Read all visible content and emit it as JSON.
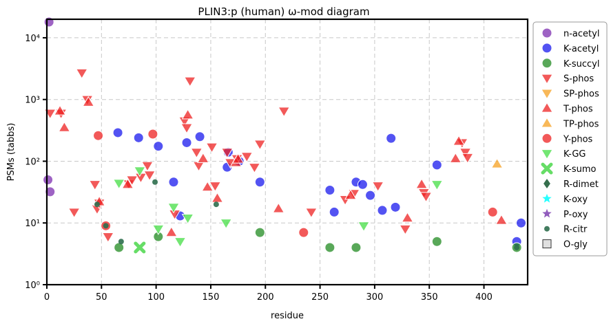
{
  "chart_data": {
    "type": "scatter",
    "title": "PLIN3:p (human) ω-mod diagram",
    "xlabel": "residue",
    "ylabel": "PSMs (tabbs)",
    "xlim": [
      0,
      440
    ],
    "ylim_log10": [
      0,
      4.3
    ],
    "y_scale": "log",
    "x_ticks": [
      0,
      50,
      100,
      150,
      200,
      250,
      300,
      350,
      400
    ],
    "x_tick_labels": [
      "0",
      "50",
      "100",
      "150",
      "200",
      "250",
      "300",
      "350",
      "400"
    ],
    "y_ticks": [
      1,
      10,
      100,
      1000,
      10000
    ],
    "y_tick_labels": [
      "10⁰",
      "10¹",
      "10²",
      "10³",
      "10⁴"
    ],
    "grid": true,
    "legend_position": "right, outside plot",
    "series": [
      {
        "name": "n-acetyl",
        "marker": "circle",
        "color": "#7e2fb0",
        "points": [
          [
            2,
            18000
          ],
          [
            1,
            50
          ],
          [
            3,
            32
          ]
        ]
      },
      {
        "name": "K-acetyl",
        "marker": "circle",
        "color": "#1a1aee",
        "points": [
          [
            65,
            290
          ],
          [
            84,
            240
          ],
          [
            102,
            175
          ],
          [
            116,
            46
          ],
          [
            122,
            13
          ],
          [
            128,
            200
          ],
          [
            140,
            250
          ],
          [
            165,
            80
          ],
          [
            166,
            140
          ],
          [
            176,
            100
          ],
          [
            195,
            46
          ],
          [
            259,
            34
          ],
          [
            263,
            15
          ],
          [
            283,
            46
          ],
          [
            289,
            42
          ],
          [
            296,
            28
          ],
          [
            307,
            16
          ],
          [
            315,
            235
          ],
          [
            319,
            18
          ],
          [
            357,
            87
          ],
          [
            430,
            5
          ],
          [
            434,
            10
          ]
        ]
      },
      {
        "name": "K-succyl",
        "marker": "circle",
        "color": "#228b22",
        "points": [
          [
            66,
            4
          ],
          [
            102,
            6
          ],
          [
            195,
            7
          ],
          [
            259,
            4
          ],
          [
            283,
            4
          ],
          [
            357,
            5
          ],
          [
            430,
            4
          ]
        ]
      },
      {
        "name": "S-phos",
        "marker": "triangle-down",
        "color": "#ee2222",
        "points": [
          [
            3,
            600
          ],
          [
            13,
            600
          ],
          [
            25,
            15
          ],
          [
            32,
            2700
          ],
          [
            37,
            1000
          ],
          [
            44,
            42
          ],
          [
            46,
            17
          ],
          [
            48,
            21
          ],
          [
            56,
            6
          ],
          [
            75,
            43
          ],
          [
            78,
            50
          ],
          [
            86,
            55
          ],
          [
            92,
            85
          ],
          [
            94,
            60
          ],
          [
            117,
            14
          ],
          [
            126,
            450
          ],
          [
            128,
            350
          ],
          [
            131,
            2000
          ],
          [
            137,
            140
          ],
          [
            139,
            85
          ],
          [
            151,
            170
          ],
          [
            154,
            40
          ],
          [
            165,
            140
          ],
          [
            168,
            95
          ],
          [
            174,
            110
          ],
          [
            183,
            120
          ],
          [
            190,
            80
          ],
          [
            195,
            190
          ],
          [
            217,
            650
          ],
          [
            242,
            15
          ],
          [
            273,
            24
          ],
          [
            281,
            30
          ],
          [
            303,
            40
          ],
          [
            328,
            8
          ],
          [
            345,
            31
          ],
          [
            347,
            27
          ],
          [
            380,
            200
          ],
          [
            383,
            140
          ],
          [
            385,
            115
          ]
        ]
      },
      {
        "name": "SP-phos",
        "marker": "triangle-down",
        "color": "#f5a020",
        "points": []
      },
      {
        "name": "T-phos",
        "marker": "triangle-up",
        "color": "#ee2222",
        "points": [
          [
            12,
            650
          ],
          [
            16,
            350
          ],
          [
            38,
            900
          ],
          [
            48,
            22
          ],
          [
            74,
            42
          ],
          [
            114,
            7
          ],
          [
            129,
            560
          ],
          [
            143,
            110
          ],
          [
            147,
            38
          ],
          [
            156,
            25
          ],
          [
            173,
            95
          ],
          [
            175,
            108
          ],
          [
            212,
            17
          ],
          [
            278,
            28
          ],
          [
            330,
            12
          ],
          [
            343,
            42
          ],
          [
            374,
            110
          ],
          [
            377,
            210
          ],
          [
            416,
            11
          ]
        ]
      },
      {
        "name": "TP-phos",
        "marker": "triangle-up",
        "color": "#f5a020",
        "points": [
          [
            412,
            90
          ]
        ]
      },
      {
        "name": "Y-phos",
        "marker": "circle",
        "color": "#ee2222",
        "points": [
          [
            47,
            260
          ],
          [
            54,
            9
          ],
          [
            97,
            275
          ],
          [
            235,
            7
          ],
          [
            408,
            15
          ]
        ]
      },
      {
        "name": "K-GG",
        "marker": "triangle-down",
        "color": "#44dd44",
        "points": [
          [
            66,
            44
          ],
          [
            85,
            70
          ],
          [
            102,
            8
          ],
          [
            116,
            18
          ],
          [
            122,
            5
          ],
          [
            129,
            12
          ],
          [
            164,
            10
          ],
          [
            290,
            9
          ],
          [
            357,
            42
          ]
        ]
      },
      {
        "name": "K-sumo",
        "marker": "x",
        "color": "#66dd66",
        "points": [
          [
            85,
            4
          ]
        ]
      },
      {
        "name": "R-dimet",
        "marker": "diamond",
        "color": "#1f5f3a",
        "points": []
      },
      {
        "name": "K-oxy",
        "marker": "star",
        "color": "#00ffff",
        "points": []
      },
      {
        "name": "P-oxy",
        "marker": "star",
        "color": "#7e3fb0",
        "points": []
      },
      {
        "name": "R-citr",
        "marker": "small-circle",
        "color": "#2e6e4e",
        "points": [
          [
            99,
            46
          ],
          [
            155,
            20
          ],
          [
            68,
            5
          ],
          [
            430,
            4
          ],
          [
            54,
            9
          ],
          [
            46,
            20
          ]
        ]
      },
      {
        "name": "O-gly",
        "marker": "square",
        "color": "#cccccc",
        "points": []
      }
    ]
  }
}
